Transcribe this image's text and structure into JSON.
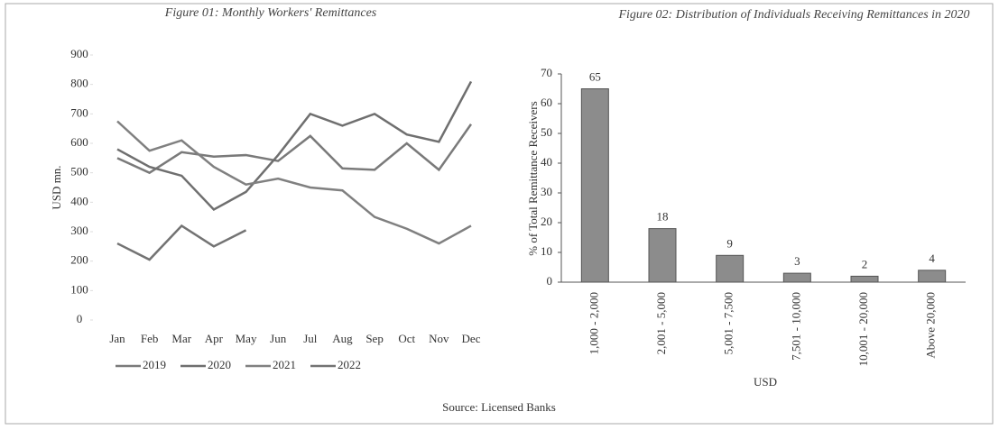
{
  "chart_data": [
    {
      "type": "line",
      "title": "Figure 01: Monthly Workers' Remittances",
      "ylabel": "USD mn.",
      "categories": [
        "Jan",
        "Feb",
        "Mar",
        "Apr",
        "May",
        "Jun",
        "Jul",
        "Aug",
        "Sep",
        "Oct",
        "Nov",
        "Dec"
      ],
      "series": [
        {
          "name": "2019",
          "color": "#7a7a7a",
          "values": [
            550,
            500,
            570,
            555,
            560,
            540,
            625,
            515,
            510,
            600,
            510,
            665
          ]
        },
        {
          "name": "2020",
          "color": "#6f6f6f",
          "values": [
            580,
            520,
            490,
            375,
            435,
            560,
            700,
            660,
            700,
            630,
            605,
            810
          ]
        },
        {
          "name": "2021",
          "color": "#808080",
          "values": [
            675,
            575,
            610,
            520,
            460,
            480,
            450,
            440,
            350,
            310,
            260,
            320
          ]
        },
        {
          "name": "2022",
          "color": "#737373",
          "values": [
            260,
            205,
            320,
            250,
            305,
            null,
            null,
            null,
            null,
            null,
            null,
            null
          ]
        }
      ],
      "ylim": [
        0,
        900
      ],
      "yticks": [
        0,
        100,
        200,
        300,
        400,
        500,
        600,
        700,
        800,
        900
      ],
      "grid": false,
      "legend": "bottom"
    },
    {
      "type": "bar",
      "title": "Figure 02: Distribution of Individuals Receiving Remittances in 2020",
      "ylabel": "% of Total Remittance Receivers",
      "xlabel": "USD",
      "categories": [
        "1,000 - 2,000",
        "2,001 - 5,000",
        "5,001 - 7,500",
        "7,501 - 10,000",
        "10,001 - 20,000",
        "Above 20,000"
      ],
      "values": [
        65,
        18,
        9,
        3,
        2,
        4
      ],
      "color": "#8c8c8c",
      "ylim": [
        0,
        70
      ],
      "yticks": [
        0,
        10,
        20,
        30,
        40,
        50,
        60,
        70
      ],
      "grid": false
    }
  ],
  "source": "Source: Licensed Banks"
}
